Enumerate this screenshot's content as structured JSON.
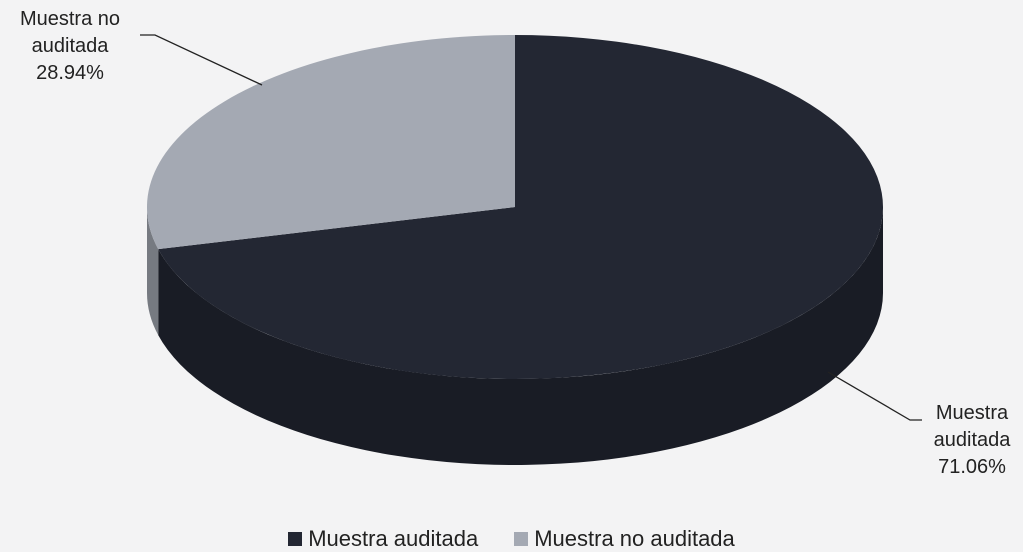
{
  "chart_data": {
    "type": "pie3d",
    "categories": [
      "Muestra auditada",
      "Muestra no auditada"
    ],
    "values": [
      71.06,
      28.94
    ],
    "value_labels": [
      "71.06%",
      "28.94%"
    ],
    "colors": [
      "#232733",
      "#a4a9b3"
    ],
    "legend": "bottom"
  }
}
